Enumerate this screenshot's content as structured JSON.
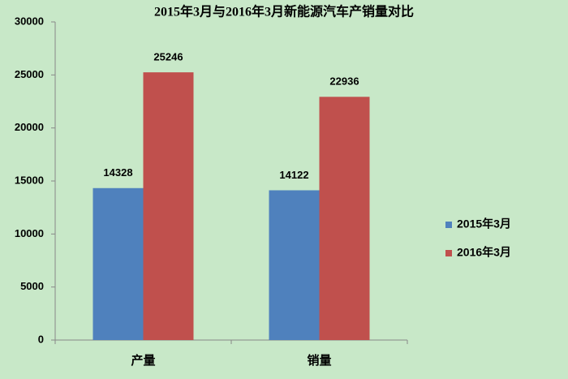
{
  "chart_data": {
    "type": "bar",
    "title": "2015年3月与2016年3月新能源汽车产销量对比",
    "categories": [
      "产量",
      "销量"
    ],
    "series": [
      {
        "name": "2015年3月",
        "color": "#4f81bd",
        "values": [
          14328,
          14122
        ]
      },
      {
        "name": "2016年3月",
        "color": "#c0504d",
        "values": [
          25246,
          22936
        ]
      }
    ],
    "ylim": [
      0,
      30000
    ],
    "yticks": [
      0,
      5000,
      10000,
      15000,
      20000,
      25000,
      30000
    ],
    "grid": false,
    "legend": "right"
  }
}
